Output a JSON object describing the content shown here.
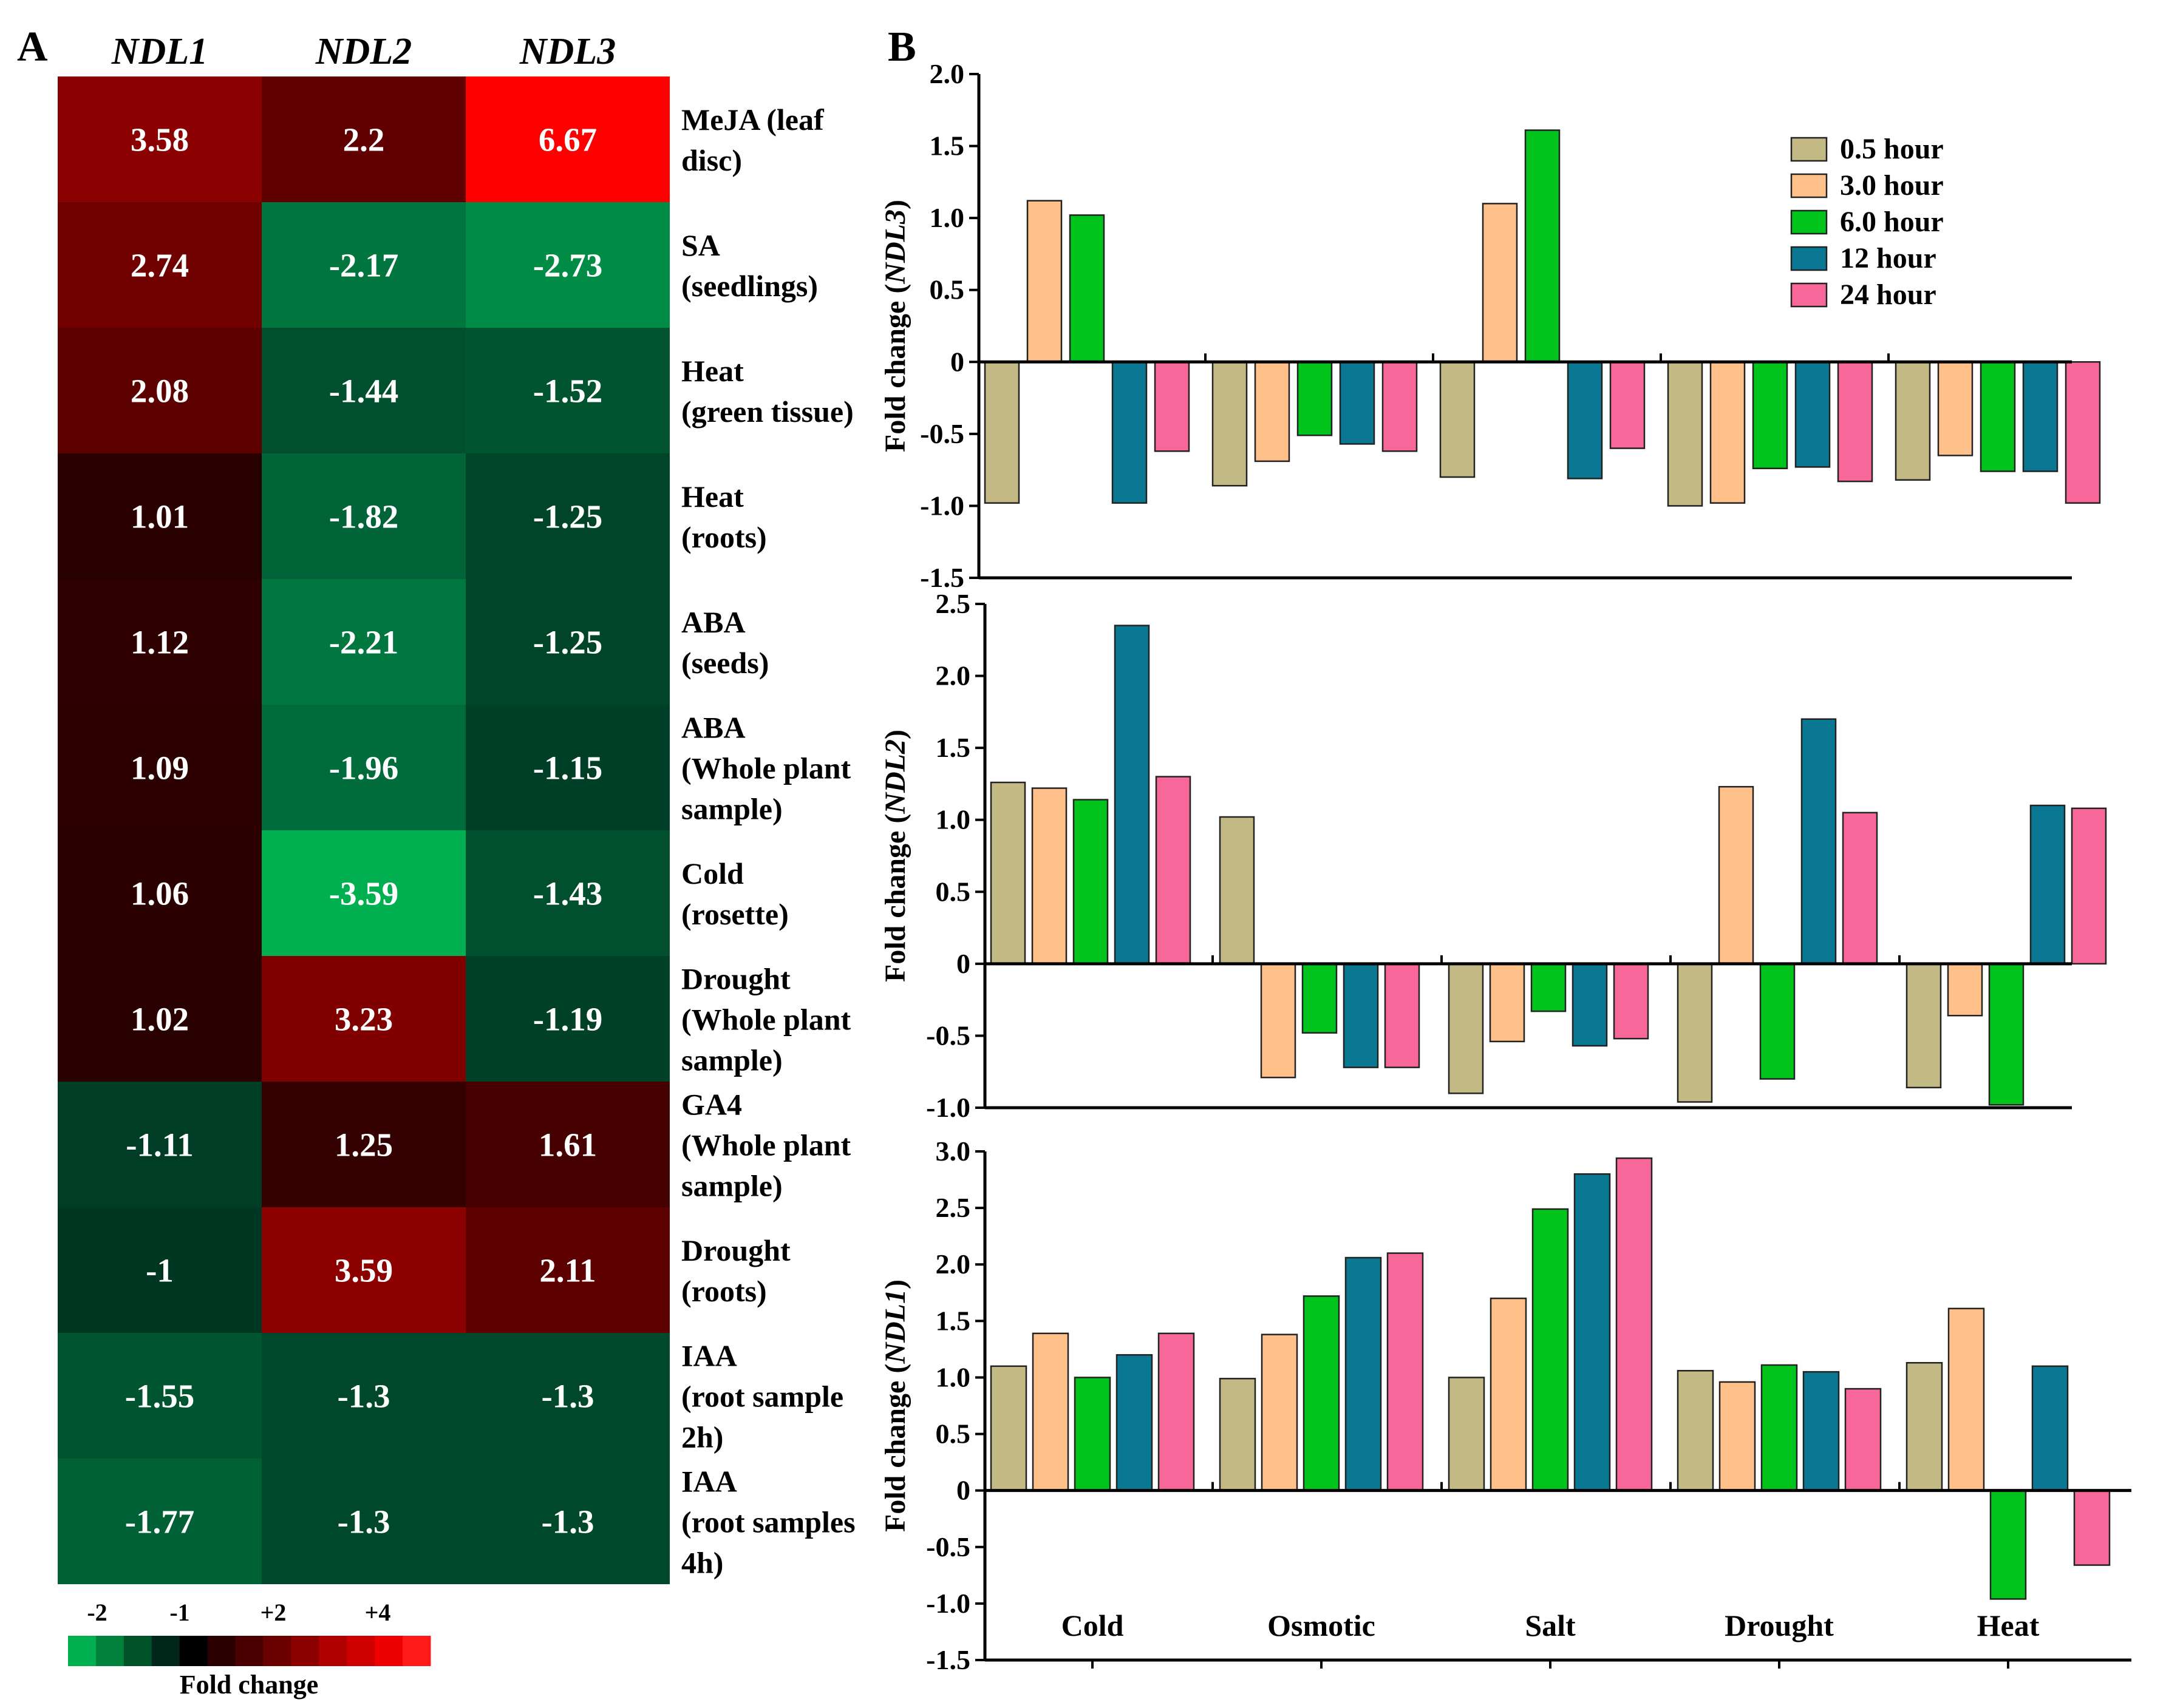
{
  "panel_labels": {
    "a": "A",
    "b": "B"
  },
  "chart_data": [
    {
      "type": "heatmap",
      "panel": "A",
      "columns": [
        "NDL1",
        "NDL2",
        "NDL3"
      ],
      "rows": [
        {
          "label": [
            "MeJA (leaf",
            "disc)"
          ],
          "values": [
            3.58,
            2.2,
            6.67
          ],
          "text": [
            "3.58",
            "2.2",
            "6.67"
          ]
        },
        {
          "label": [
            "SA",
            "(seedlings)"
          ],
          "values": [
            2.74,
            -2.17,
            -2.73
          ],
          "text": [
            "2.74",
            "-2.17",
            "-2.73"
          ]
        },
        {
          "label": [
            "Heat",
            "(green tissue)"
          ],
          "values": [
            2.08,
            -1.44,
            -1.52
          ],
          "text": [
            "2.08",
            "-1.44",
            "-1.52"
          ]
        },
        {
          "label": [
            "Heat",
            "(roots)"
          ],
          "values": [
            1.01,
            -1.82,
            -1.25
          ],
          "text": [
            "1.01",
            "-1.82",
            "-1.25"
          ]
        },
        {
          "label": [
            "ABA",
            "(seeds)"
          ],
          "values": [
            1.12,
            -2.21,
            -1.25
          ],
          "text": [
            "1.12",
            "-2.21",
            "-1.25"
          ]
        },
        {
          "label": [
            "ABA",
            "(Whole plant",
            "sample)"
          ],
          "values": [
            1.09,
            -1.96,
            -1.15
          ],
          "text": [
            "1.09",
            "-1.96",
            "-1.15"
          ]
        },
        {
          "label": [
            "Cold",
            "(rosette)"
          ],
          "values": [
            1.06,
            -3.59,
            -1.43
          ],
          "text": [
            "1.06",
            "-3.59",
            "-1.43"
          ]
        },
        {
          "label": [
            "Drought",
            "(Whole plant",
            "sample)"
          ],
          "values": [
            1.02,
            3.23,
            -1.19
          ],
          "text": [
            "1.02",
            "3.23",
            "-1.19"
          ]
        },
        {
          "label": [
            "GA4",
            "(Whole plant",
            "sample)"
          ],
          "values": [
            -1.11,
            1.25,
            1.61
          ],
          "text": [
            "-1.11",
            "1.25",
            "1.61"
          ]
        },
        {
          "label": [
            "Drought",
            "(roots)"
          ],
          "values": [
            -1,
            3.59,
            2.11
          ],
          "text": [
            "-1",
            "3.59",
            "2.11"
          ]
        },
        {
          "label": [
            "IAA",
            "(root sample",
            "2h)"
          ],
          "values": [
            -1.55,
            -1.3,
            -1.3
          ],
          "text": [
            "-1.55",
            "-1.3",
            "-1.3"
          ]
        },
        {
          "label": [
            "IAA",
            "(root samples",
            "4h)"
          ],
          "values": [
            -1.77,
            -1.3,
            -1.3
          ],
          "text": [
            "-1.77",
            "-1.3",
            "-1.3"
          ]
        }
      ],
      "colorbar": {
        "label": "Fold change",
        "tick_labels": [
          "-2",
          "-1",
          "+2",
          "+4"
        ],
        "colors": [
          "#00b050",
          "#00823c",
          "#005228",
          "#00261a",
          "#000000",
          "#2a0000",
          "#4a0000",
          "#6b0000",
          "#8c0000",
          "#b00000",
          "#d00000",
          "#ee0000",
          "#ff1a1a"
        ]
      }
    },
    {
      "type": "bar",
      "panel": "B",
      "ylabel": "Fold change (NDL3)",
      "ylabel_prefix": "Fold change (",
      "ylabel_gene": "NDL3",
      "ylabel_suffix": ")",
      "ylim": [
        -1.5,
        2.0
      ],
      "yticks": [
        -1.5,
        -1.0,
        -0.5,
        0,
        0.5,
        1.0,
        1.5,
        2.0
      ],
      "ytick_labels": [
        "-1.5",
        "-1.0",
        "-0.5",
        "0",
        "0.5",
        "1.0",
        "1.5",
        "2.0"
      ],
      "categories": [
        "Cold",
        "Osmotic",
        "Salt",
        "Drought",
        "Heat"
      ],
      "series": [
        {
          "name": "0.5 hour",
          "values": [
            -0.98,
            -0.86,
            -0.8,
            -1.0,
            -0.82
          ]
        },
        {
          "name": "3.0 hour",
          "values": [
            1.12,
            -0.69,
            1.1,
            -0.98,
            -0.65
          ]
        },
        {
          "name": "6.0 hour",
          "values": [
            1.02,
            -0.51,
            1.61,
            -0.74,
            -0.76
          ]
        },
        {
          "name": "12 hour",
          "values": [
            -0.98,
            -0.57,
            -0.81,
            -0.73,
            -0.76
          ]
        },
        {
          "name": "24 hour",
          "values": [
            -0.62,
            -0.62,
            -0.6,
            -0.83,
            -0.98
          ]
        }
      ],
      "legend": "top-right"
    },
    {
      "type": "bar",
      "panel": "B",
      "ylabel": "Fold change (NDL2)",
      "ylabel_prefix": "Fold change (",
      "ylabel_gene": "NDL2",
      "ylabel_suffix": ")",
      "ylim": [
        -1.0,
        2.5
      ],
      "yticks": [
        -1.0,
        -0.5,
        0,
        0.5,
        1.0,
        1.5,
        2.0,
        2.5
      ],
      "ytick_labels": [
        "-1.0",
        "-0.5",
        "0",
        "0.5",
        "1.0",
        "1.5",
        "2.0",
        "2.5"
      ],
      "categories": [
        "Cold",
        "Osmotic",
        "Salt",
        "Drought",
        "Heat"
      ],
      "series": [
        {
          "name": "0.5 hour",
          "values": [
            1.26,
            1.02,
            -0.9,
            -0.96,
            -0.86
          ]
        },
        {
          "name": "3.0 hour",
          "values": [
            1.22,
            -0.79,
            -0.54,
            1.23,
            -0.36
          ]
        },
        {
          "name": "6.0 hour",
          "values": [
            1.14,
            -0.48,
            -0.33,
            -0.8,
            -0.98
          ]
        },
        {
          "name": "12 hour",
          "values": [
            2.35,
            -0.72,
            -0.57,
            1.7,
            1.1
          ]
        },
        {
          "name": "24 hour",
          "values": [
            1.3,
            -0.72,
            -0.52,
            1.05,
            1.08
          ]
        }
      ]
    },
    {
      "type": "bar",
      "panel": "B",
      "ylabel": "Fold change (NDL1)",
      "ylabel_prefix": "Fold change (",
      "ylabel_gene": "NDL1",
      "ylabel_suffix": ")",
      "ylim": [
        -1.5,
        3.0
      ],
      "yticks": [
        -1.5,
        -1.0,
        -0.5,
        0,
        0.5,
        1.0,
        1.5,
        2.0,
        2.5,
        3.0
      ],
      "ytick_labels": [
        "-1.5",
        "-1.0",
        "-0.5",
        "0",
        "0.5",
        "1.0",
        "1.5",
        "2.0",
        "2.5",
        "3.0"
      ],
      "categories": [
        "Cold",
        "Osmotic",
        "Salt",
        "Drought",
        "Heat"
      ],
      "xlabel": "",
      "series": [
        {
          "name": "0.5 hour",
          "values": [
            1.1,
            0.99,
            1.0,
            1.06,
            1.13
          ]
        },
        {
          "name": "3.0 hour",
          "values": [
            1.39,
            1.38,
            1.7,
            0.96,
            1.61
          ]
        },
        {
          "name": "6.0 hour",
          "values": [
            1.0,
            1.72,
            2.49,
            1.11,
            -0.96
          ]
        },
        {
          "name": "12 hour",
          "values": [
            1.2,
            2.06,
            2.8,
            1.05,
            1.1
          ]
        },
        {
          "name": "24 hour",
          "values": [
            1.39,
            2.1,
            2.94,
            0.9,
            -0.66
          ]
        }
      ]
    }
  ],
  "series_colors": [
    "#c2b985",
    "#ffc08a",
    "#00c41c",
    "#0a7892",
    "#f7679a"
  ]
}
